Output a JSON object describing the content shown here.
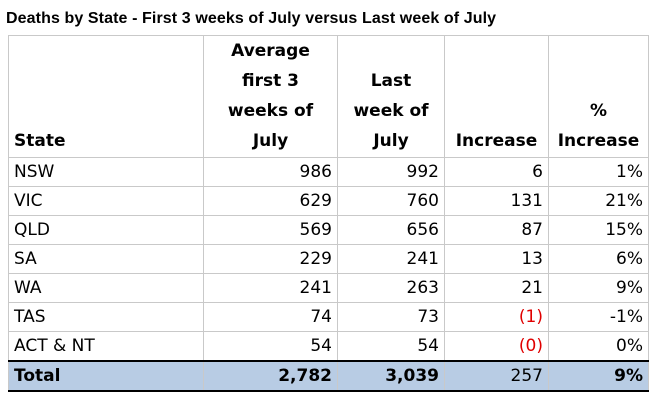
{
  "title": "Deaths by State - First 3 weeks of July versus Last week of July",
  "chart_data": {
    "type": "table",
    "title": "Deaths by State - First 3 weeks of July versus Last week of July",
    "columns": [
      "State",
      "Average first 3 weeks of July",
      "Last week of July",
      "Increase",
      "% Increase"
    ],
    "rows": [
      {
        "state": "NSW",
        "avg": "986",
        "last": "992",
        "increase": "6",
        "pct": "1%"
      },
      {
        "state": "VIC",
        "avg": "629",
        "last": "760",
        "increase": "131",
        "pct": "21%"
      },
      {
        "state": "QLD",
        "avg": "569",
        "last": "656",
        "increase": "87",
        "pct": "15%"
      },
      {
        "state": "SA",
        "avg": "229",
        "last": "241",
        "increase": "13",
        "pct": "6%"
      },
      {
        "state": "WA",
        "avg": "241",
        "last": "263",
        "increase": "21",
        "pct": "9%"
      },
      {
        "state": "TAS",
        "avg": "74",
        "last": "73",
        "increase": "(1)",
        "pct": "-1%",
        "negative": true
      },
      {
        "state": "ACT & NT",
        "avg": "54",
        "last": "54",
        "increase": "(0)",
        "pct": "0%",
        "negative": true
      }
    ],
    "total": {
      "state": "Total",
      "avg": "2,782",
      "last": "3,039",
      "increase": "257",
      "pct": "9%"
    }
  },
  "colors": {
    "negative": "#e00000",
    "total_fill": "#b8cce4",
    "gridline": "#c9c9c9"
  }
}
